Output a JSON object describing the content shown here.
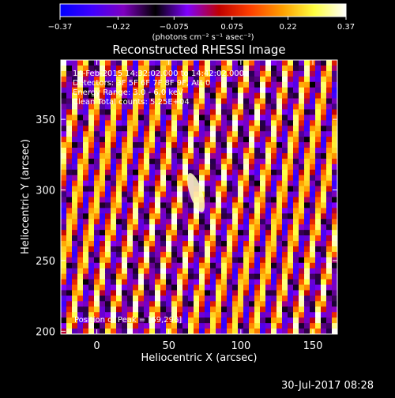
{
  "colorbar": {
    "min": -0.37,
    "max": 0.37,
    "tick_labels": [
      "−0.37",
      "−0.22",
      "−0.075",
      "0.075",
      "0.22",
      "0.37"
    ],
    "tick_values": [
      -0.37,
      -0.22,
      -0.075,
      0.075,
      0.22,
      0.37
    ],
    "units": "(photons cm⁻² s⁻¹ asec⁻²)",
    "colormap": [
      "#0000ff",
      "#3f00ff",
      "#7f00c0",
      "#000000",
      "#7f00ff",
      "#c00000",
      "#ff4000",
      "#ff9f00",
      "#ffff40",
      "#ffffff"
    ]
  },
  "chart_data": {
    "type": "heatmap",
    "title": "Reconstructed RHESSI Image",
    "xlabel": "Heliocentric X (arcsec)",
    "ylabel": "Heliocentric Y (arcsec)",
    "xlim": [
      -25,
      167
    ],
    "ylim": [
      198,
      392
    ],
    "x_ticks": [
      0,
      50,
      100,
      150
    ],
    "y_ticks": [
      200,
      250,
      300,
      350
    ],
    "annotations": [
      "14-Feb-2015 14:32:02.000 to 14:42:02.000",
      "Detectors: 3F 5F 6F 7F 8F 9F, Att 0",
      "Energy Range: 3.0 - 6.0 keV",
      "Clean     Total counts: 5.25E+04"
    ],
    "peak_label": "Position of Peak = [69,296]",
    "peak": {
      "x": 69,
      "y": 296
    },
    "stripe_pattern": "diagonal fringes, steep positive slope",
    "value_range": [
      -0.37,
      0.37
    ]
  },
  "date_stamp": "30-Jul-2017 08:28"
}
